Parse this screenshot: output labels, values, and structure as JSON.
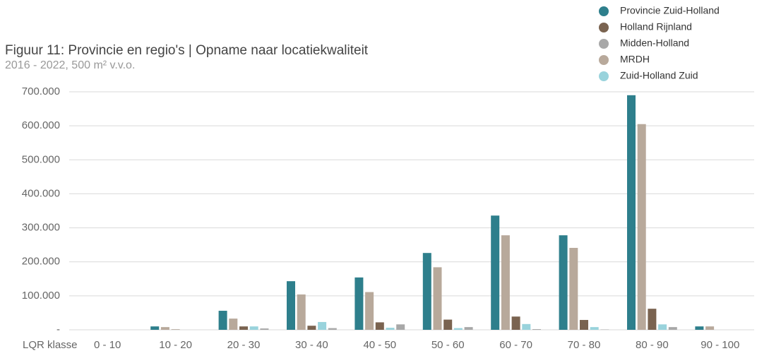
{
  "chart_data": {
    "type": "bar",
    "title": "Figuur 11: Provincie en regio's | Opname naar locatiekwaliteit",
    "subtitle": "2016 - 2022, 500 m² v.v.o.",
    "x_label": "LQR klasse",
    "categories": [
      "0 - 10",
      "10 - 20",
      "20 - 30",
      "30 - 40",
      "40 - 50",
      "50 - 60",
      "60 - 70",
      "70 - 80",
      "80 - 90",
      "90 - 100"
    ],
    "series": [
      {
        "name": "Provincie Zuid-Holland",
        "color": "#2e7f8c",
        "values": [
          0,
          10000,
          56000,
          143000,
          154000,
          226000,
          336000,
          278000,
          690000,
          10000
        ]
      },
      {
        "name": "Holland Rijnland",
        "color": "#7a6350",
        "values": [
          0,
          1000,
          10000,
          12000,
          22000,
          30000,
          39000,
          29000,
          62000,
          0
        ]
      },
      {
        "name": "Midden-Holland",
        "color": "#a8a8a8",
        "values": [
          0,
          0,
          4000,
          5000,
          16000,
          8000,
          2000,
          1000,
          8000,
          0
        ]
      },
      {
        "name": "MRDH",
        "color": "#b8a99b",
        "values": [
          0,
          8000,
          33000,
          104000,
          111000,
          184000,
          278000,
          241000,
          605000,
          10000
        ]
      },
      {
        "name": "Zuid-Holland Zuid",
        "color": "#99d3dc",
        "values": [
          0,
          0,
          10000,
          23000,
          6000,
          5000,
          17000,
          8000,
          16000,
          0
        ]
      }
    ],
    "ylim": [
      0,
      700000
    ],
    "yticks": [
      {
        "value": 0,
        "label": "-"
      },
      {
        "value": 100000,
        "label": "100.000"
      },
      {
        "value": 200000,
        "label": "200.000"
      },
      {
        "value": 300000,
        "label": "300.000"
      },
      {
        "value": 400000,
        "label": "400.000"
      },
      {
        "value": 500000,
        "label": "500.000"
      },
      {
        "value": 600000,
        "label": "600.000"
      },
      {
        "value": 700000,
        "label": "700.000"
      }
    ],
    "grid": true,
    "legend": "top-right"
  }
}
